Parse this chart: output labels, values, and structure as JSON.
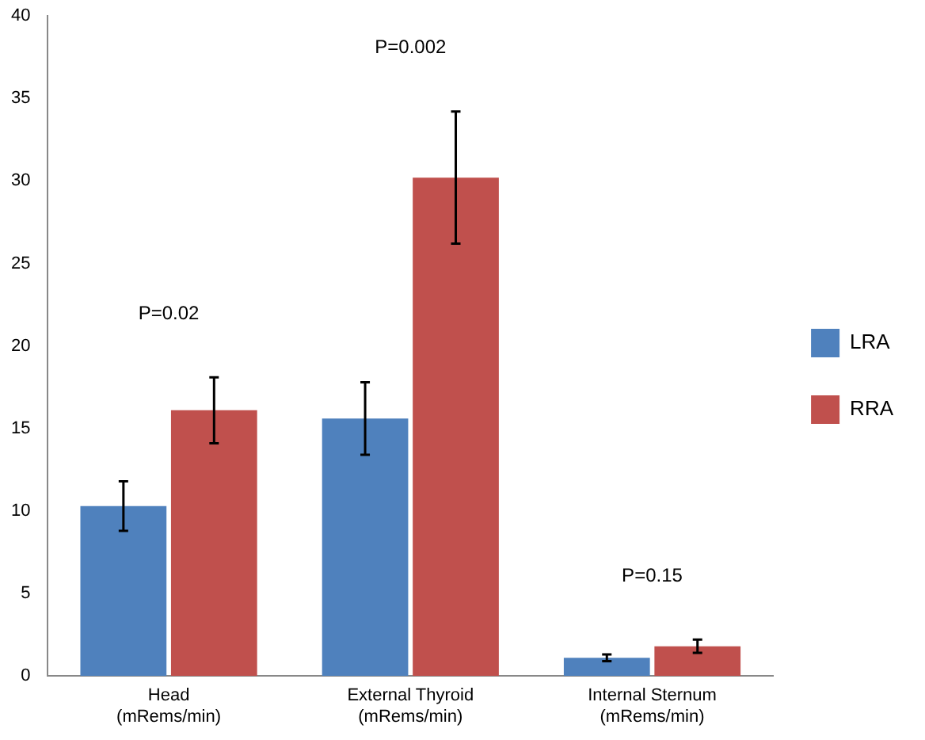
{
  "chart_data": {
    "type": "bar",
    "categories": [
      "Head (mRems/min)",
      "External Thyroid (mRems/min)",
      "Internal Sternum (mRems/min)"
    ],
    "series": [
      {
        "name": "LRA",
        "color": "#4f81bd",
        "values": [
          10.3,
          15.6,
          1.1
        ],
        "errors": [
          1.5,
          2.2,
          0.2
        ]
      },
      {
        "name": "RRA",
        "color": "#c0504d",
        "values": [
          16.1,
          30.2,
          1.8
        ],
        "errors": [
          2,
          4,
          0.4
        ]
      }
    ],
    "ylim": [
      0,
      40
    ],
    "yticks": [
      0,
      5,
      10,
      15,
      20,
      25,
      30,
      35,
      40
    ],
    "grid": false,
    "legend": "right",
    "annotations": [
      "P=0.02",
      "P=0.002",
      "P=0.15"
    ]
  }
}
